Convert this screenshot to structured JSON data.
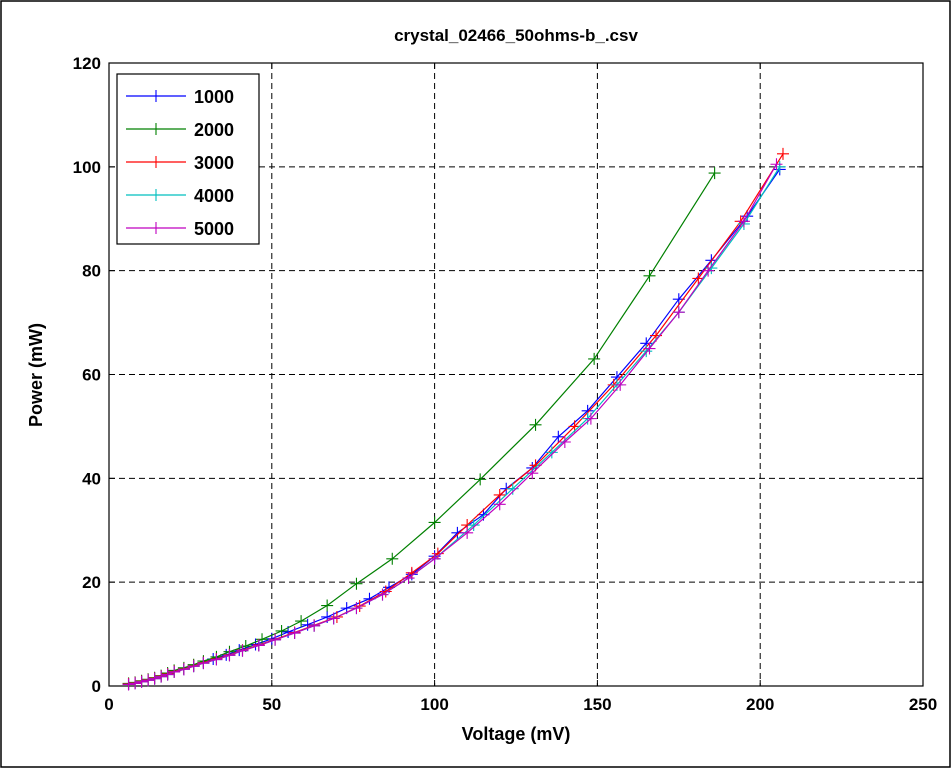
{
  "chart_data": {
    "type": "line",
    "title": "crystal_02466_50ohms-b_.csv",
    "xlabel": "Voltage (mV)",
    "ylabel": "Power (mW)",
    "xlim": [
      0,
      250
    ],
    "ylim": [
      0,
      120
    ],
    "xticks": [
      0,
      50,
      100,
      150,
      200,
      250
    ],
    "yticks": [
      0,
      20,
      40,
      60,
      80,
      100,
      120
    ],
    "xtick_labels": [
      "0",
      "50",
      "100",
      "150",
      "200",
      "250"
    ],
    "ytick_labels": [
      "0",
      "20",
      "40",
      "60",
      "80",
      "100",
      "120"
    ],
    "grid": true,
    "legend_position": "top-left",
    "series": [
      {
        "name": "1000",
        "color": "#0000ff",
        "x": [
          6,
          8,
          10,
          12,
          14,
          16,
          18,
          20,
          23,
          26,
          29,
          32,
          36,
          40,
          45,
          50,
          55,
          61,
          67,
          73,
          80,
          86,
          93,
          100,
          107,
          115,
          122,
          130,
          138,
          147,
          156,
          165,
          175,
          185,
          196,
          206
        ],
        "y": [
          0.4,
          0.6,
          0.9,
          1.2,
          1.5,
          1.9,
          2.3,
          2.8,
          3.3,
          3.9,
          4.5,
          5.2,
          6.0,
          6.9,
          8.0,
          9.1,
          10.4,
          11.8,
          13.3,
          15.0,
          16.8,
          19.0,
          21.5,
          25.0,
          29.5,
          33.0,
          38.0,
          42.0,
          48.0,
          53.0,
          59.5,
          66.0,
          74.5,
          82.0,
          90.5,
          99.5
        ]
      },
      {
        "name": "2000",
        "color": "#008000",
        "x": [
          6,
          8,
          10,
          12,
          14,
          16,
          18,
          20,
          23,
          26,
          29,
          33,
          37,
          42,
          47,
          53,
          59,
          67,
          76,
          87,
          100,
          114,
          131,
          149,
          166,
          186
        ],
        "y": [
          0.5,
          0.7,
          1.0,
          1.3,
          1.6,
          2.0,
          2.5,
          3.0,
          3.5,
          4.1,
          4.8,
          5.6,
          6.6,
          7.7,
          9.0,
          10.6,
          12.5,
          15.5,
          19.7,
          24.5,
          31.5,
          39.8,
          50.3,
          63.0,
          79.0,
          98.8
        ]
      },
      {
        "name": "3000",
        "color": "#ff0000",
        "x": [
          6,
          8,
          10,
          12,
          14,
          16,
          18,
          20,
          23,
          26,
          29,
          33,
          37,
          41,
          46,
          51,
          57,
          63,
          70,
          77,
          85,
          93,
          101,
          110,
          120,
          131,
          143,
          155,
          168,
          181,
          194,
          207
        ],
        "y": [
          0.4,
          0.6,
          0.9,
          1.2,
          1.5,
          1.9,
          2.3,
          2.8,
          3.3,
          3.9,
          4.5,
          5.2,
          6.0,
          6.9,
          7.9,
          9.0,
          10.3,
          11.7,
          13.3,
          15.4,
          18.2,
          21.8,
          25.5,
          31.0,
          36.8,
          42.5,
          50.0,
          58.0,
          67.5,
          78.5,
          89.5,
          102.5
        ]
      },
      {
        "name": "4000",
        "color": "#00bfbf",
        "x": [
          6,
          8,
          10,
          12,
          14,
          16,
          18,
          20,
          23,
          26,
          29,
          33,
          37,
          41,
          46,
          51,
          57,
          63,
          69,
          76,
          84,
          92,
          100,
          112,
          124,
          136,
          147,
          156,
          165,
          175,
          185,
          195,
          206
        ],
        "y": [
          0.3,
          0.5,
          0.8,
          1.1,
          1.4,
          1.8,
          2.2,
          2.7,
          3.2,
          3.8,
          4.4,
          5.1,
          5.9,
          6.8,
          7.8,
          8.9,
          10.2,
          11.6,
          13.0,
          15.0,
          17.6,
          20.8,
          24.5,
          31.0,
          38.0,
          45.0,
          51.5,
          58.0,
          64.5,
          72.0,
          80.5,
          89.0,
          100.0
        ]
      },
      {
        "name": "5000",
        "color": "#bf00bf",
        "x": [
          6,
          8,
          10,
          12,
          14,
          16,
          18,
          20,
          23,
          26,
          29,
          33,
          37,
          41,
          46,
          51,
          57,
          63,
          69,
          76,
          84,
          92,
          100,
          110,
          120,
          130,
          140,
          148,
          157,
          166,
          175,
          184,
          195,
          205
        ],
        "y": [
          0.3,
          0.5,
          0.8,
          1.1,
          1.4,
          1.8,
          2.2,
          2.7,
          3.2,
          3.8,
          4.4,
          5.1,
          5.9,
          6.8,
          7.8,
          8.9,
          10.2,
          11.6,
          13.0,
          15.0,
          17.6,
          20.8,
          24.5,
          29.5,
          35.0,
          41.0,
          47.0,
          51.5,
          58.0,
          65.0,
          72.0,
          80.0,
          89.5,
          100.5
        ]
      }
    ]
  }
}
